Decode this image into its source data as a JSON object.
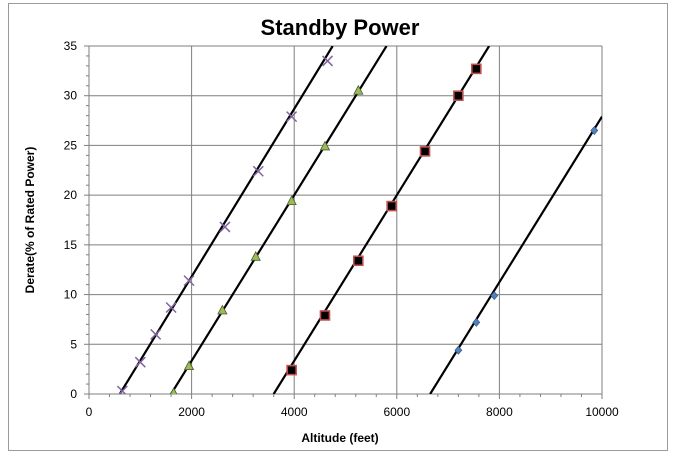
{
  "chart_data": {
    "type": "scatter",
    "title": "Standby Power",
    "xlabel": "Altitude (feet)",
    "ylabel": "Derate(% of Rated Power)",
    "xlim": [
      0,
      10000
    ],
    "ylim": [
      0,
      35
    ],
    "xticks": [
      0,
      2000,
      4000,
      6000,
      8000,
      10000
    ],
    "yticks": [
      0,
      5,
      10,
      15,
      20,
      25,
      30,
      35
    ],
    "grid": true,
    "legend": "none",
    "colors": {
      "line": "#000000",
      "grid": "#7f7f7f",
      "purple": "#8064a2",
      "green": "#9bbb59",
      "red": "#c0504d",
      "blue": "#4f81bd"
    },
    "series": [
      {
        "marker": "x",
        "color": "#8064a2",
        "trend": [
          [
            600,
            0
          ],
          [
            4750,
            35
          ]
        ],
        "points": [
          [
            650,
            0.3
          ],
          [
            1000,
            3.2
          ],
          [
            1300,
            6.0
          ],
          [
            1600,
            8.7
          ],
          [
            1950,
            11.4
          ],
          [
            2650,
            16.8
          ],
          [
            3300,
            22.4
          ],
          [
            3950,
            27.9
          ],
          [
            4650,
            33.5
          ]
        ]
      },
      {
        "marker": "triangle",
        "color": "#9bbb59",
        "trend": [
          [
            1600,
            0
          ],
          [
            5800,
            35
          ]
        ],
        "points": [
          [
            1650,
            0.1
          ],
          [
            1950,
            2.8
          ],
          [
            2600,
            8.4
          ],
          [
            3250,
            13.8
          ],
          [
            3950,
            19.4
          ],
          [
            4600,
            24.9
          ],
          [
            5250,
            30.5
          ]
        ]
      },
      {
        "marker": "square",
        "color": "#c0504d",
        "trend": [
          [
            3600,
            0
          ],
          [
            7800,
            35
          ]
        ],
        "points": [
          [
            3950,
            2.4
          ],
          [
            4600,
            7.9
          ],
          [
            5250,
            13.4
          ],
          [
            5900,
            18.9
          ],
          [
            6550,
            24.4
          ],
          [
            7200,
            30.0
          ],
          [
            7550,
            32.7
          ]
        ]
      },
      {
        "marker": "diamond",
        "color": "#4f81bd",
        "trend": [
          [
            6650,
            0
          ],
          [
            10000,
            27.9
          ]
        ],
        "points": [
          [
            7200,
            4.4
          ],
          [
            7550,
            7.2
          ],
          [
            7900,
            9.9
          ],
          [
            9850,
            26.5
          ]
        ]
      }
    ]
  }
}
